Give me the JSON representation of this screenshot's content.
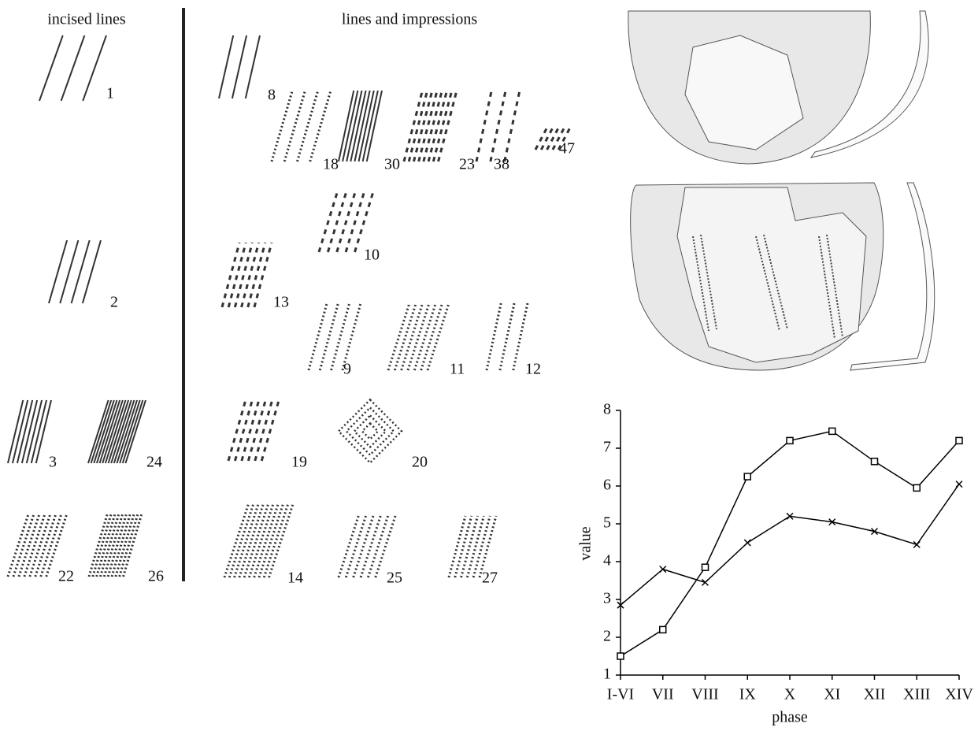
{
  "headings": {
    "left": "incised lines",
    "right": "lines and impressions"
  },
  "motifs": [
    {
      "label": "1"
    },
    {
      "label": "2"
    },
    {
      "label": "3"
    },
    {
      "label": "24"
    },
    {
      "label": "22"
    },
    {
      "label": "26"
    },
    {
      "label": "8"
    },
    {
      "label": "18"
    },
    {
      "label": "30"
    },
    {
      "label": "23"
    },
    {
      "label": "38"
    },
    {
      "label": "47"
    },
    {
      "label": "10"
    },
    {
      "label": "13"
    },
    {
      "label": "9"
    },
    {
      "label": "11"
    },
    {
      "label": "12"
    },
    {
      "label": "19"
    },
    {
      "label": "20"
    },
    {
      "label": "14"
    },
    {
      "label": "25"
    },
    {
      "label": "27"
    }
  ],
  "chart_data": {
    "type": "line",
    "x_label": "phase",
    "y_label": "value",
    "categories": [
      "I-VI",
      "VII",
      "VIII",
      "IX",
      "X",
      "XI",
      "XII",
      "XIII",
      "XIV"
    ],
    "series": [
      {
        "marker": "square",
        "color": "#000000",
        "values": [
          1.5,
          2.2,
          3.85,
          6.25,
          7.2,
          7.45,
          6.65,
          5.95,
          7.2
        ]
      },
      {
        "marker": "cross",
        "color": "#000000",
        "values": [
          2.85,
          3.8,
          3.45,
          4.5,
          5.2,
          5.05,
          4.8,
          4.45,
          6.05
        ]
      }
    ],
    "ylim": [
      1,
      8
    ],
    "yticks": [
      1,
      2,
      3,
      4,
      5,
      6,
      7,
      8
    ],
    "grid": false
  }
}
